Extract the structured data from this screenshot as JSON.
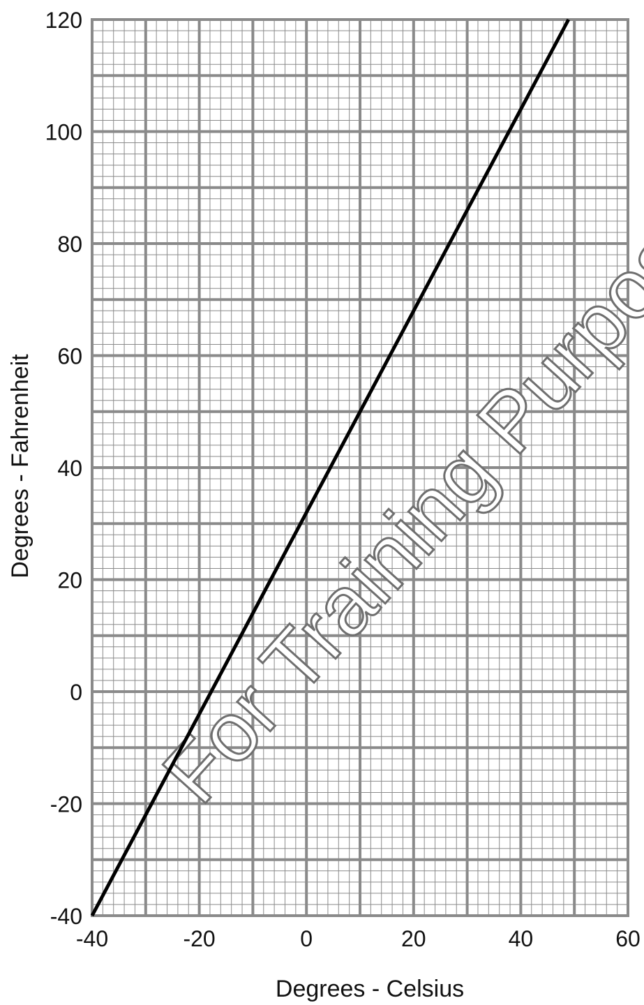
{
  "chart_data": {
    "type": "line",
    "title": "",
    "xlabel": "Degrees - Celsius",
    "ylabel": "Degrees - Fahrenheit",
    "xlim": [
      -40,
      60
    ],
    "ylim": [
      -40,
      120
    ],
    "x_ticks": [
      "-40",
      "-20",
      "0",
      "20",
      "40",
      "60"
    ],
    "y_ticks": [
      "120",
      "100",
      "80",
      "60",
      "40",
      "20",
      "0",
      "-20",
      "-40"
    ],
    "grid": {
      "major_x": 10,
      "major_y": 10,
      "minor_subdivisions": 5
    },
    "series": [
      {
        "x": [
          -40,
          48.9
        ],
        "y": [
          -40,
          120
        ]
      }
    ],
    "watermark": "For Training Purposes",
    "colors": {
      "line": "#000000",
      "grid": "#8a8a8a",
      "watermark": "#6f6f6f"
    }
  }
}
